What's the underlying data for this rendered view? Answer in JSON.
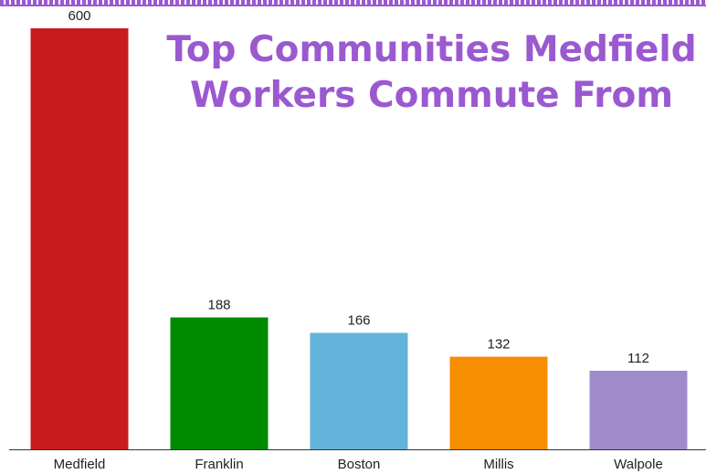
{
  "chart_data": {
    "type": "bar",
    "title": "Top Communities Medfield Workers Commute From",
    "categories": [
      "Medfield",
      "Franklin",
      "Boston",
      "Millis",
      "Walpole"
    ],
    "values": [
      600,
      188,
      166,
      132,
      112
    ],
    "value_labels": [
      "600",
      "188",
      "166",
      "132",
      "112"
    ],
    "colors": [
      "#c81c1c",
      "#008a00",
      "#62b3da",
      "#f78d00",
      "#a08bca"
    ],
    "title_color": "#9b59d0",
    "xlabel": "",
    "ylabel": "",
    "ylim": [
      0,
      600
    ],
    "grid": false,
    "legend": "none"
  }
}
